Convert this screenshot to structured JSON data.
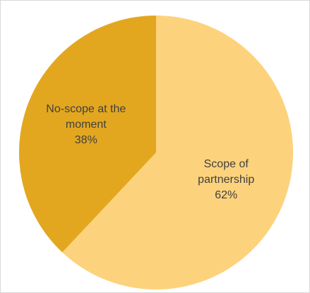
{
  "chart_data": {
    "type": "pie",
    "categories": [
      "Scope of partnership",
      "No-scope at the moment"
    ],
    "values": [
      62,
      38
    ],
    "value_labels": [
      "62%",
      "38%"
    ],
    "colors": [
      "#fdd27c",
      "#e3a71f"
    ]
  }
}
